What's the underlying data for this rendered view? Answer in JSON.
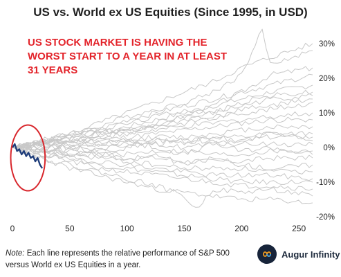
{
  "title": "US vs. World ex US Equities (Since 1995, in USD)",
  "annotation": "US STOCK MARKET IS HAVING THE WORST START TO A YEAR IN AT LEAST 31 YEARS",
  "note": {
    "prefix": "Note:",
    "text": " Each line represents the relative performance of S&P 500 versus World ex US Equities in a year."
  },
  "brand": {
    "name": "Augur Infinity",
    "icon": "infinity-icon"
  },
  "colors": {
    "history": "#c8c8c8",
    "current": "#1f3d7a",
    "highlight": "#d8262c",
    "annotation": "#e3242b"
  },
  "chart_data": {
    "type": "line",
    "title": "US vs. World ex US Equities (Since 1995, in USD)",
    "xlabel": "",
    "ylabel": "",
    "xlim": [
      0,
      262
    ],
    "ylim": [
      -21,
      34
    ],
    "x_ticks": [
      0,
      50,
      100,
      150,
      200,
      250
    ],
    "x_tick_labels": [
      "0",
      "50",
      "100",
      "150",
      "200",
      "250"
    ],
    "y_ticks": [
      30,
      20,
      10,
      0,
      -10,
      -20
    ],
    "y_tick_labels": [
      "30%",
      "20%",
      "10%",
      "0%",
      "-10%",
      "-20%"
    ],
    "y_axis_side": "right",
    "grid": false,
    "series": [
      {
        "values": [
          [
            0,
            0
          ],
          [
            25,
            1
          ],
          [
            50,
            3
          ],
          [
            75,
            4
          ],
          [
            100,
            5
          ],
          [
            125,
            7
          ],
          [
            150,
            9
          ],
          [
            175,
            12
          ],
          [
            200,
            16
          ],
          [
            225,
            21
          ],
          [
            262,
            23
          ]
        ]
      },
      {
        "values": [
          [
            0,
            0
          ],
          [
            25,
            2
          ],
          [
            50,
            4
          ],
          [
            75,
            6
          ],
          [
            100,
            9
          ],
          [
            125,
            11
          ],
          [
            150,
            13
          ],
          [
            175,
            16
          ],
          [
            200,
            21
          ],
          [
            218,
            34
          ],
          [
            225,
            24
          ],
          [
            262,
            28
          ]
        ]
      },
      {
        "values": [
          [
            0,
            0
          ],
          [
            25,
            2
          ],
          [
            50,
            4
          ],
          [
            75,
            7
          ],
          [
            100,
            10
          ],
          [
            125,
            13
          ],
          [
            150,
            16
          ],
          [
            175,
            19
          ],
          [
            200,
            23
          ],
          [
            225,
            26
          ],
          [
            262,
            30
          ]
        ]
      },
      {
        "values": [
          [
            0,
            0
          ],
          [
            25,
            1
          ],
          [
            50,
            3
          ],
          [
            75,
            5
          ],
          [
            100,
            8
          ],
          [
            125,
            10
          ],
          [
            150,
            12
          ],
          [
            175,
            14
          ],
          [
            200,
            16
          ],
          [
            225,
            18
          ],
          [
            262,
            21
          ]
        ]
      },
      {
        "values": [
          [
            0,
            0
          ],
          [
            25,
            2
          ],
          [
            50,
            2
          ],
          [
            75,
            4
          ],
          [
            100,
            6
          ],
          [
            125,
            8
          ],
          [
            150,
            10
          ],
          [
            175,
            12
          ],
          [
            200,
            14
          ],
          [
            225,
            16
          ],
          [
            262,
            18
          ]
        ]
      },
      {
        "values": [
          [
            0,
            0
          ],
          [
            25,
            1
          ],
          [
            50,
            2
          ],
          [
            75,
            3
          ],
          [
            100,
            5
          ],
          [
            125,
            6
          ],
          [
            150,
            8
          ],
          [
            175,
            10
          ],
          [
            200,
            12
          ],
          [
            225,
            14
          ],
          [
            262,
            15
          ]
        ]
      },
      {
        "values": [
          [
            0,
            0
          ],
          [
            25,
            2
          ],
          [
            50,
            3
          ],
          [
            75,
            4
          ],
          [
            100,
            5
          ],
          [
            125,
            6
          ],
          [
            150,
            7
          ],
          [
            175,
            9
          ],
          [
            200,
            10
          ],
          [
            225,
            11
          ],
          [
            262,
            13
          ]
        ]
      },
      {
        "values": [
          [
            0,
            0
          ],
          [
            25,
            1
          ],
          [
            50,
            2
          ],
          [
            75,
            3
          ],
          [
            100,
            4
          ],
          [
            125,
            5
          ],
          [
            150,
            6
          ],
          [
            175,
            7
          ],
          [
            200,
            8
          ],
          [
            225,
            9
          ],
          [
            262,
            10
          ]
        ]
      },
      {
        "values": [
          [
            0,
            0
          ],
          [
            25,
            1
          ],
          [
            50,
            2
          ],
          [
            75,
            2
          ],
          [
            100,
            3
          ],
          [
            125,
            4
          ],
          [
            150,
            5
          ],
          [
            175,
            6
          ],
          [
            200,
            7
          ],
          [
            225,
            8
          ],
          [
            262,
            8
          ]
        ]
      },
      {
        "values": [
          [
            0,
            0
          ],
          [
            25,
            1
          ],
          [
            50,
            1
          ],
          [
            75,
            2
          ],
          [
            100,
            2
          ],
          [
            125,
            3
          ],
          [
            150,
            3
          ],
          [
            175,
            4
          ],
          [
            200,
            5
          ],
          [
            225,
            6
          ],
          [
            262,
            6
          ]
        ]
      },
      {
        "values": [
          [
            0,
            0
          ],
          [
            25,
            0
          ],
          [
            50,
            1
          ],
          [
            75,
            1
          ],
          [
            100,
            2
          ],
          [
            125,
            2
          ],
          [
            150,
            2
          ],
          [
            175,
            3
          ],
          [
            200,
            3
          ],
          [
            225,
            4
          ],
          [
            262,
            4
          ]
        ]
      },
      {
        "values": [
          [
            0,
            0
          ],
          [
            25,
            1
          ],
          [
            50,
            0
          ],
          [
            75,
            1
          ],
          [
            100,
            1
          ],
          [
            125,
            1
          ],
          [
            150,
            2
          ],
          [
            175,
            2
          ],
          [
            200,
            2
          ],
          [
            225,
            3
          ],
          [
            262,
            3
          ]
        ]
      },
      {
        "values": [
          [
            0,
            0
          ],
          [
            25,
            0
          ],
          [
            50,
            0
          ],
          [
            75,
            -1
          ],
          [
            100,
            0
          ],
          [
            125,
            1
          ],
          [
            150,
            0
          ],
          [
            175,
            1
          ],
          [
            200,
            1
          ],
          [
            225,
            1
          ],
          [
            262,
            1
          ]
        ]
      },
      {
        "values": [
          [
            0,
            0
          ],
          [
            25,
            -1
          ],
          [
            50,
            -1
          ],
          [
            75,
            -2
          ],
          [
            100,
            -2
          ],
          [
            125,
            -1
          ],
          [
            150,
            -1
          ],
          [
            175,
            -2
          ],
          [
            200,
            -2
          ],
          [
            225,
            -1
          ],
          [
            262,
            -1
          ]
        ]
      },
      {
        "values": [
          [
            0,
            0
          ],
          [
            25,
            -1
          ],
          [
            50,
            -2
          ],
          [
            75,
            -2
          ],
          [
            100,
            -3
          ],
          [
            125,
            -3
          ],
          [
            150,
            -4
          ],
          [
            175,
            -4
          ],
          [
            200,
            -4
          ],
          [
            225,
            -3
          ],
          [
            262,
            -3
          ]
        ]
      },
      {
        "values": [
          [
            0,
            0
          ],
          [
            25,
            -1
          ],
          [
            50,
            -2
          ],
          [
            75,
            -3
          ],
          [
            100,
            -4
          ],
          [
            125,
            -5
          ],
          [
            150,
            -6
          ],
          [
            175,
            -6
          ],
          [
            200,
            -6
          ],
          [
            225,
            -7
          ],
          [
            262,
            -7
          ]
        ]
      },
      {
        "values": [
          [
            0,
            0
          ],
          [
            25,
            -2
          ],
          [
            50,
            -3
          ],
          [
            75,
            -4
          ],
          [
            100,
            -5
          ],
          [
            125,
            -6
          ],
          [
            150,
            -7
          ],
          [
            175,
            -8
          ],
          [
            200,
            -8
          ],
          [
            225,
            -8
          ],
          [
            262,
            -9
          ]
        ]
      },
      {
        "values": [
          [
            0,
            0
          ],
          [
            25,
            -2
          ],
          [
            50,
            -3
          ],
          [
            75,
            -5
          ],
          [
            100,
            -6
          ],
          [
            125,
            -7
          ],
          [
            150,
            -8
          ],
          [
            175,
            -9
          ],
          [
            200,
            -10
          ],
          [
            225,
            -10
          ],
          [
            262,
            -10
          ]
        ]
      },
      {
        "values": [
          [
            0,
            0
          ],
          [
            25,
            -2
          ],
          [
            50,
            -4
          ],
          [
            75,
            -6
          ],
          [
            100,
            -7
          ],
          [
            125,
            -8
          ],
          [
            150,
            -9
          ],
          [
            175,
            -10
          ],
          [
            200,
            -11
          ],
          [
            225,
            -11
          ],
          [
            262,
            -12
          ]
        ]
      },
      {
        "values": [
          [
            0,
            0
          ],
          [
            25,
            -3
          ],
          [
            50,
            -5
          ],
          [
            75,
            -7
          ],
          [
            100,
            -9
          ],
          [
            125,
            -11
          ],
          [
            150,
            -14
          ],
          [
            160,
            -18
          ],
          [
            175,
            -12
          ],
          [
            200,
            -13
          ],
          [
            225,
            -12
          ],
          [
            262,
            -14
          ]
        ]
      },
      {
        "values": [
          [
            0,
            0
          ],
          [
            25,
            -3
          ],
          [
            50,
            -6
          ],
          [
            75,
            -8
          ],
          [
            100,
            -10
          ],
          [
            125,
            -12
          ],
          [
            150,
            -13
          ],
          [
            175,
            -14
          ],
          [
            200,
            -15
          ],
          [
            225,
            -15
          ],
          [
            262,
            -16
          ]
        ]
      },
      {
        "values": [
          [
            0,
            0
          ],
          [
            25,
            -1
          ],
          [
            50,
            1
          ],
          [
            75,
            -1
          ],
          [
            100,
            2
          ],
          [
            125,
            0
          ],
          [
            150,
            -2
          ],
          [
            175,
            1
          ],
          [
            200,
            -1
          ],
          [
            225,
            0
          ],
          [
            262,
            -2
          ]
        ]
      },
      {
        "values": [
          [
            0,
            0
          ],
          [
            25,
            1
          ],
          [
            50,
            -1
          ],
          [
            75,
            2
          ],
          [
            100,
            0
          ],
          [
            125,
            3
          ],
          [
            150,
            1
          ],
          [
            175,
            3
          ],
          [
            200,
            2
          ],
          [
            225,
            4
          ],
          [
            262,
            2
          ]
        ]
      },
      {
        "values": [
          [
            0,
            0
          ],
          [
            25,
            0
          ],
          [
            50,
            -2
          ],
          [
            75,
            -1
          ],
          [
            100,
            -4
          ],
          [
            125,
            -2
          ],
          [
            150,
            -5
          ],
          [
            175,
            -3
          ],
          [
            200,
            -5
          ],
          [
            225,
            -6
          ],
          [
            262,
            -5
          ]
        ]
      },
      {
        "values": [
          [
            0,
            0
          ],
          [
            25,
            2
          ],
          [
            50,
            3
          ],
          [
            75,
            5
          ],
          [
            100,
            4
          ],
          [
            125,
            6
          ],
          [
            150,
            9
          ],
          [
            175,
            8
          ],
          [
            200,
            11
          ],
          [
            225,
            12
          ],
          [
            262,
            14
          ]
        ]
      },
      {
        "values": [
          [
            0,
            0
          ],
          [
            25,
            1
          ],
          [
            50,
            4
          ],
          [
            75,
            5
          ],
          [
            100,
            7
          ],
          [
            125,
            9
          ],
          [
            150,
            11
          ],
          [
            175,
            10
          ],
          [
            200,
            13
          ],
          [
            225,
            15
          ],
          [
            262,
            16
          ]
        ]
      }
    ],
    "current_year": {
      "values": [
        [
          0,
          0
        ],
        [
          2,
          1
        ],
        [
          4,
          -1
        ],
        [
          6,
          -0.5
        ],
        [
          8,
          -2
        ],
        [
          10,
          -1
        ],
        [
          12,
          -2.5
        ],
        [
          14,
          -1.5
        ],
        [
          16,
          -3
        ],
        [
          18,
          -2.5
        ],
        [
          20,
          -4
        ],
        [
          22,
          -3
        ],
        [
          24,
          -5
        ],
        [
          26,
          -6
        ]
      ]
    },
    "highlight_ellipse": {
      "cx": 13.5,
      "cy": -3,
      "rx": 15,
      "ry": 9.5
    }
  }
}
